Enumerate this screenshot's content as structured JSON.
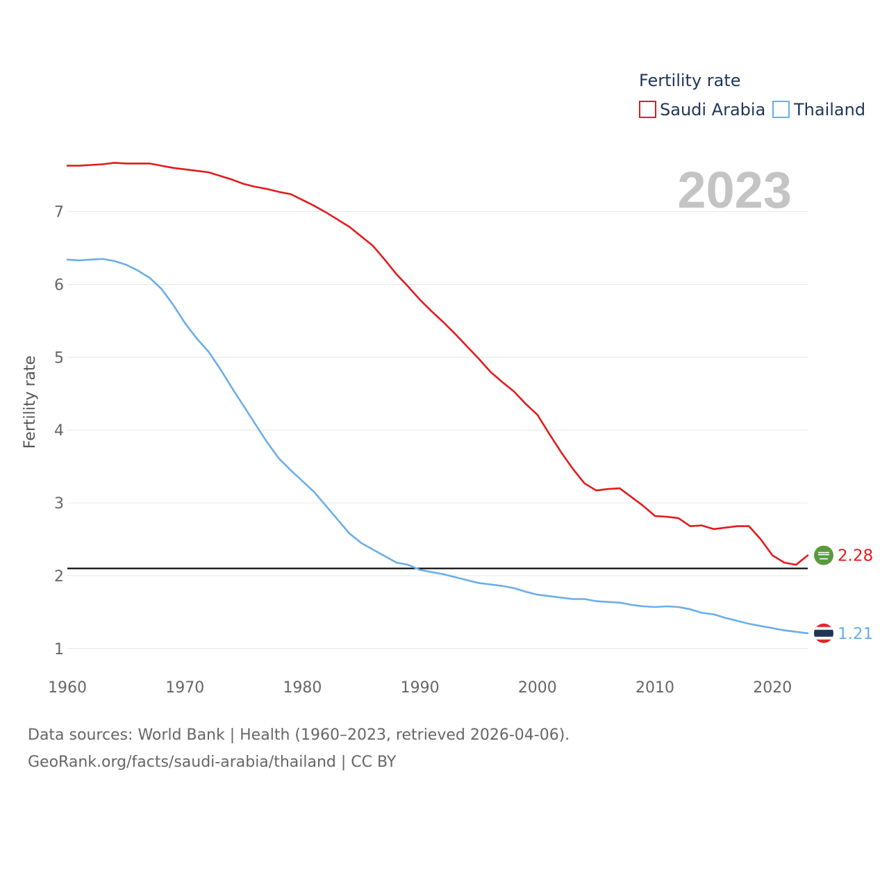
{
  "chart_data": {
    "type": "line",
    "year_label": "2023",
    "ylabel": "Fertility rate",
    "xlabel": "",
    "xlim": [
      1960,
      2023
    ],
    "ylim": [
      0.75,
      7.95
    ],
    "x_ticks": [
      "1960",
      "1970",
      "1980",
      "1990",
      "2000",
      "2010",
      "2020"
    ],
    "y_ticks": [
      "1",
      "2",
      "3",
      "4",
      "5",
      "6",
      "7"
    ],
    "reference_line": 2.1,
    "legend": {
      "title": "Fertility rate",
      "position": "top-right",
      "entries": [
        "Saudi Arabia",
        "Thailand"
      ]
    },
    "x": [
      1960,
      1961,
      1962,
      1963,
      1964,
      1965,
      1966,
      1967,
      1968,
      1969,
      1970,
      1971,
      1972,
      1973,
      1974,
      1975,
      1976,
      1977,
      1978,
      1979,
      1980,
      1981,
      1982,
      1983,
      1984,
      1985,
      1986,
      1987,
      1988,
      1989,
      1990,
      1991,
      1992,
      1993,
      1994,
      1995,
      1996,
      1997,
      1998,
      1999,
      2000,
      2001,
      2002,
      2003,
      2004,
      2005,
      2006,
      2007,
      2008,
      2009,
      2010,
      2011,
      2012,
      2013,
      2014,
      2015,
      2016,
      2017,
      2018,
      2019,
      2020,
      2021,
      2022,
      2023
    ],
    "series": [
      {
        "name": "Saudi Arabia",
        "color": "#e31a1c",
        "end_label": "2.28",
        "flag": "saudi-arabia",
        "values": [
          7.63,
          7.63,
          7.64,
          7.65,
          7.67,
          7.66,
          7.66,
          7.66,
          7.63,
          7.6,
          7.58,
          7.56,
          7.54,
          7.49,
          7.44,
          7.38,
          7.34,
          7.31,
          7.27,
          7.24,
          7.16,
          7.08,
          6.99,
          6.89,
          6.79,
          6.66,
          6.53,
          6.34,
          6.14,
          5.97,
          5.79,
          5.63,
          5.48,
          5.32,
          5.15,
          4.98,
          4.8,
          4.66,
          4.53,
          4.36,
          4.21,
          3.95,
          3.7,
          3.47,
          3.27,
          3.17,
          3.19,
          3.2,
          3.08,
          2.96,
          2.82,
          2.81,
          2.79,
          2.68,
          2.69,
          2.64,
          2.66,
          2.68,
          2.68,
          2.5,
          2.28,
          2.18,
          2.15,
          2.28
        ]
      },
      {
        "name": "Thailand",
        "color": "#6aaee8",
        "end_label": "1.21",
        "flag": "thailand",
        "values": [
          6.34,
          6.33,
          6.34,
          6.35,
          6.32,
          6.27,
          6.19,
          6.09,
          5.94,
          5.72,
          5.47,
          5.26,
          5.08,
          4.84,
          4.58,
          4.33,
          4.08,
          3.83,
          3.61,
          3.45,
          3.3,
          3.15,
          2.96,
          2.77,
          2.58,
          2.45,
          2.36,
          2.27,
          2.18,
          2.15,
          2.08,
          2.05,
          2.02,
          1.98,
          1.94,
          1.9,
          1.88,
          1.86,
          1.83,
          1.78,
          1.74,
          1.72,
          1.7,
          1.68,
          1.68,
          1.65,
          1.64,
          1.63,
          1.6,
          1.58,
          1.57,
          1.58,
          1.57,
          1.54,
          1.49,
          1.47,
          1.42,
          1.38,
          1.34,
          1.31,
          1.28,
          1.25,
          1.23,
          1.21
        ]
      }
    ]
  },
  "footer": {
    "line1": "Data sources: World Bank | Health (1960–2023, retrieved 2026-04-06).",
    "line2": "GeoRank.org/facts/saudi-arabia/thailand | CC BY"
  }
}
